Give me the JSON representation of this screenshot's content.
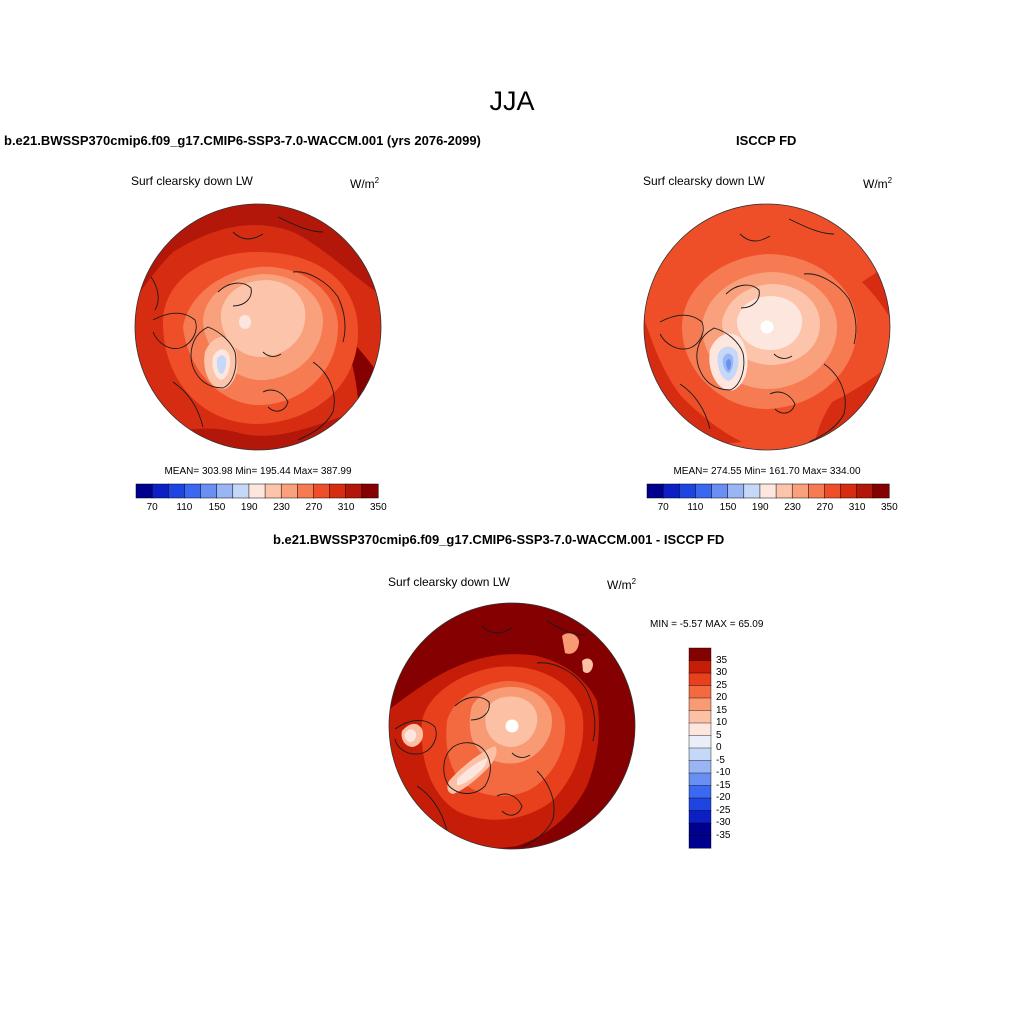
{
  "main_title": "JJA",
  "colors": {
    "seq": [
      "#00008f",
      "#0b1fc4",
      "#1f45e0",
      "#3a68f0",
      "#6a8ff3",
      "#9ab5f4",
      "#c6d8f7",
      "#fde6dd",
      "#fcc4aa",
      "#f9a07c",
      "#f67a52",
      "#ef4f28",
      "#d62d12",
      "#b2170a",
      "#850000"
    ],
    "diff": [
      "#850000",
      "#c51d07",
      "#e8401c",
      "#f36a41",
      "#f89a74",
      "#fcc0a4",
      "#fde6dd",
      "#e9eef9",
      "#c6d8f7",
      "#9ab5f4",
      "#6a8ff3",
      "#3a68f0",
      "#1f45e0",
      "#0b1fc4",
      "#00008f"
    ],
    "land_line": "#1a1a1a"
  },
  "panels": {
    "model": {
      "title": "b.e21.BWSSP370cmip6.f09_g17.CMIP6-SSP3-7.0-WACCM.001 (yrs 2076-2099)",
      "variable": "Surf clearsky down LW",
      "units": "W/m",
      "units_exp": "2",
      "stats": "MEAN= 303.98  Min= 195.44  Max= 387.99",
      "colorbar_ticks": [
        "70",
        "110",
        "150",
        "190",
        "230",
        "270",
        "310",
        "350"
      ]
    },
    "obs": {
      "title": "ISCCP FD",
      "variable": "Surf clearsky down LW",
      "units": "W/m",
      "units_exp": "2",
      "stats": "MEAN= 274.55  Min= 161.70  Max= 334.00",
      "colorbar_ticks": [
        "70",
        "110",
        "150",
        "190",
        "230",
        "270",
        "310",
        "350"
      ]
    },
    "diff": {
      "title": "b.e21.BWSSP370cmip6.f09_g17.CMIP6-SSP3-7.0-WACCM.001 - ISCCP FD",
      "variable": "Surf clearsky down LW",
      "units": "W/m",
      "units_exp": "2",
      "stats": "MIN =  -5.57 MAX =  65.09",
      "colorbar_ticks": [
        "35",
        "30",
        "25",
        "20",
        "15",
        "10",
        "5",
        "0",
        "-5",
        "-10",
        "-15",
        "-20",
        "-25",
        "-30",
        "-35"
      ]
    }
  }
}
